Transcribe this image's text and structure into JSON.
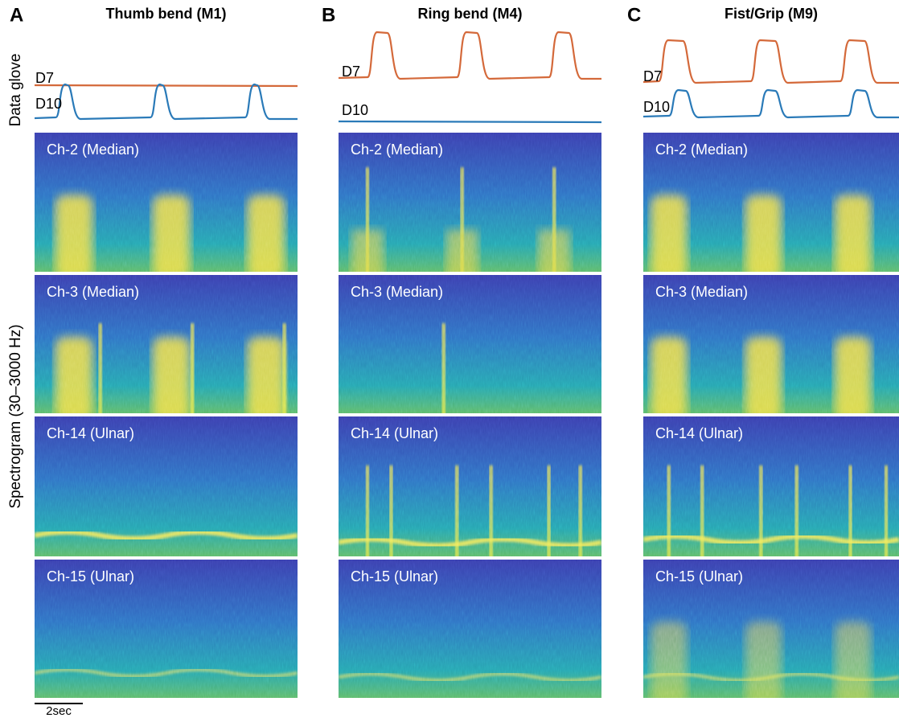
{
  "panels": [
    {
      "letter": "A",
      "title": "Thumb bend (M1)",
      "traces": [
        "D7",
        "D10"
      ],
      "channels": [
        "Ch-2 (Median)",
        "Ch-3 (Median)",
        "Ch-14 (Ulnar)",
        "Ch-15 (Ulnar)"
      ]
    },
    {
      "letter": "B",
      "title": "Ring bend (M4)",
      "traces": [
        "D7",
        "D10"
      ],
      "channels": [
        "Ch-2 (Median)",
        "Ch-3 (Median)",
        "Ch-14 (Ulnar)",
        "Ch-15 (Ulnar)"
      ]
    },
    {
      "letter": "C",
      "title": "Fist/Grip (M9)",
      "traces": [
        "D7",
        "D10"
      ],
      "channels": [
        "Ch-2 (Median)",
        "Ch-3 (Median)",
        "Ch-14 (Ulnar)",
        "Ch-15 (Ulnar)"
      ]
    }
  ],
  "y_labels": {
    "glove": "Data glove",
    "spectrogram": "Spectrogram (30–3000 Hz)"
  },
  "scale_bar": "2sec"
}
